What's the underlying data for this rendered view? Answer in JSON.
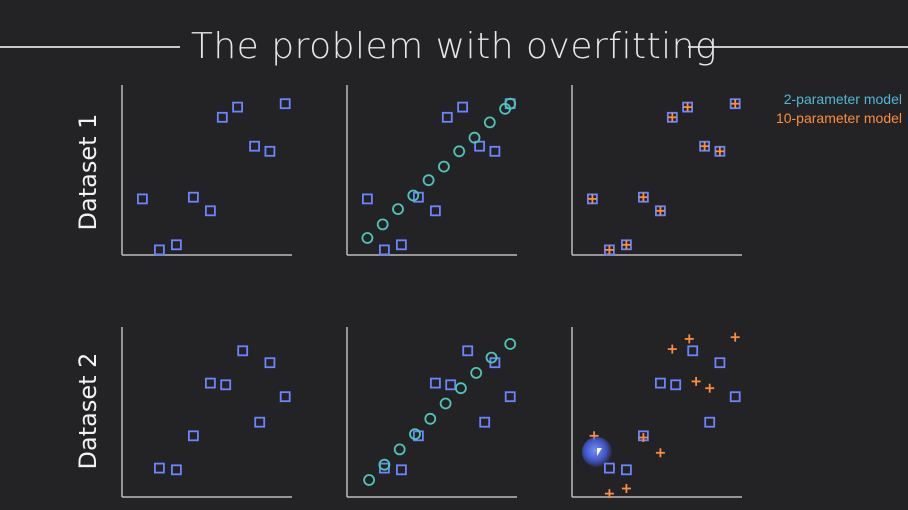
{
  "title": "The problem with overfitting",
  "row_labels": [
    "Dataset 1",
    "Dataset 2"
  ],
  "legend": {
    "items": [
      {
        "label": "2-parameter model",
        "color": "#4fb8d8",
        "marker": "circle"
      },
      {
        "label": "10-parameter model",
        "color": "#ff8c3a",
        "marker": "plus"
      }
    ]
  },
  "colors": {
    "data_squares": "#6b84ff",
    "fit_2param": "#4fc4b8",
    "fit_10param": "#ff8c3a",
    "axes": "#bdbdbd",
    "background": "#232325"
  },
  "chart_data": [
    {
      "type": "scatter",
      "dataset": "Dataset 1",
      "panel": "data",
      "xlim": [
        0,
        10
      ],
      "ylim": [
        0,
        10
      ],
      "grid": false,
      "series": [
        {
          "marker": "square",
          "points": [
            [
              1.2,
              3.3
            ],
            [
              2.2,
              0.3
            ],
            [
              3.2,
              0.6
            ],
            [
              4.2,
              3.4
            ],
            [
              5.2,
              2.6
            ],
            [
              5.9,
              8.1
            ],
            [
              6.8,
              8.7
            ],
            [
              7.8,
              6.4
            ],
            [
              8.7,
              6.1
            ],
            [
              9.6,
              8.9
            ]
          ]
        }
      ]
    },
    {
      "type": "scatter",
      "dataset": "Dataset 1",
      "panel": "2-parameter fit",
      "xlim": [
        0,
        10
      ],
      "ylim": [
        0,
        10
      ],
      "grid": false,
      "series": [
        {
          "marker": "square",
          "points": [
            [
              1.2,
              3.3
            ],
            [
              2.2,
              0.3
            ],
            [
              3.2,
              0.6
            ],
            [
              4.2,
              3.4
            ],
            [
              5.2,
              2.6
            ],
            [
              5.9,
              8.1
            ],
            [
              6.8,
              8.7
            ],
            [
              7.8,
              6.4
            ],
            [
              8.7,
              6.1
            ],
            [
              9.6,
              8.9
            ]
          ]
        },
        {
          "marker": "circle",
          "points": [
            [
              1.2,
              1.0
            ],
            [
              2.1,
              1.8
            ],
            [
              3.0,
              2.7
            ],
            [
              3.9,
              3.5
            ],
            [
              4.8,
              4.4
            ],
            [
              5.7,
              5.2
            ],
            [
              6.6,
              6.1
            ],
            [
              7.5,
              6.9
            ],
            [
              8.4,
              7.8
            ],
            [
              9.3,
              8.6
            ],
            [
              9.6,
              8.9
            ]
          ]
        }
      ]
    },
    {
      "type": "scatter",
      "dataset": "Dataset 1",
      "panel": "10-parameter fit",
      "xlim": [
        0,
        10
      ],
      "ylim": [
        0,
        10
      ],
      "grid": false,
      "series": [
        {
          "marker": "square",
          "points": [
            [
              1.2,
              3.3
            ],
            [
              2.2,
              0.3
            ],
            [
              3.2,
              0.6
            ],
            [
              4.2,
              3.4
            ],
            [
              5.2,
              2.6
            ],
            [
              5.9,
              8.1
            ],
            [
              6.8,
              8.7
            ],
            [
              7.8,
              6.4
            ],
            [
              8.7,
              6.1
            ],
            [
              9.6,
              8.9
            ]
          ]
        },
        {
          "marker": "plus",
          "points": [
            [
              1.2,
              3.3
            ],
            [
              2.2,
              0.3
            ],
            [
              3.2,
              0.6
            ],
            [
              4.2,
              3.4
            ],
            [
              5.2,
              2.6
            ],
            [
              5.9,
              8.1
            ],
            [
              6.8,
              8.7
            ],
            [
              7.8,
              6.4
            ],
            [
              8.7,
              6.1
            ],
            [
              9.6,
              8.9
            ]
          ]
        }
      ]
    },
    {
      "type": "scatter",
      "dataset": "Dataset 2",
      "panel": "data",
      "xlim": [
        0,
        10
      ],
      "ylim": [
        0,
        10
      ],
      "grid": false,
      "series": [
        {
          "marker": "square",
          "points": [
            [
              2.2,
              1.7
            ],
            [
              3.2,
              1.6
            ],
            [
              4.2,
              3.6
            ],
            [
              5.2,
              6.7
            ],
            [
              6.1,
              6.6
            ],
            [
              7.1,
              8.6
            ],
            [
              8.1,
              4.4
            ],
            [
              8.7,
              7.9
            ],
            [
              9.6,
              5.9
            ]
          ]
        }
      ]
    },
    {
      "type": "scatter",
      "dataset": "Dataset 2",
      "panel": "2-parameter fit",
      "xlim": [
        0,
        10
      ],
      "ylim": [
        0,
        10
      ],
      "grid": false,
      "series": [
        {
          "marker": "square",
          "points": [
            [
              2.2,
              1.7
            ],
            [
              3.2,
              1.6
            ],
            [
              4.2,
              3.6
            ],
            [
              5.2,
              6.7
            ],
            [
              6.1,
              6.6
            ],
            [
              7.1,
              8.6
            ],
            [
              8.1,
              4.4
            ],
            [
              8.7,
              7.9
            ],
            [
              9.6,
              5.9
            ]
          ]
        },
        {
          "marker": "circle",
          "points": [
            [
              1.3,
              1.0
            ],
            [
              2.2,
              1.9
            ],
            [
              3.1,
              2.8
            ],
            [
              4.0,
              3.7
            ],
            [
              4.9,
              4.6
            ],
            [
              5.8,
              5.5
            ],
            [
              6.7,
              6.4
            ],
            [
              7.6,
              7.3
            ],
            [
              8.5,
              8.2
            ],
            [
              9.6,
              9.0
            ]
          ]
        }
      ]
    },
    {
      "type": "scatter",
      "dataset": "Dataset 2",
      "panel": "10-parameter fit",
      "xlim": [
        0,
        10
      ],
      "ylim": [
        0,
        10
      ],
      "grid": false,
      "series": [
        {
          "marker": "square",
          "points": [
            [
              2.2,
              1.7
            ],
            [
              3.2,
              1.6
            ],
            [
              4.2,
              3.6
            ],
            [
              5.2,
              6.7
            ],
            [
              6.1,
              6.6
            ],
            [
              7.1,
              8.6
            ],
            [
              8.1,
              4.4
            ],
            [
              8.7,
              7.9
            ],
            [
              9.6,
              5.9
            ]
          ]
        },
        {
          "marker": "plus",
          "points": [
            [
              1.3,
              3.6
            ],
            [
              2.2,
              0.2
            ],
            [
              3.2,
              0.5
            ],
            [
              4.2,
              3.5
            ],
            [
              5.2,
              2.6
            ],
            [
              5.9,
              8.7
            ],
            [
              6.9,
              9.3
            ],
            [
              7.3,
              6.8
            ],
            [
              8.1,
              6.4
            ],
            [
              9.6,
              9.4
            ]
          ]
        }
      ]
    }
  ]
}
